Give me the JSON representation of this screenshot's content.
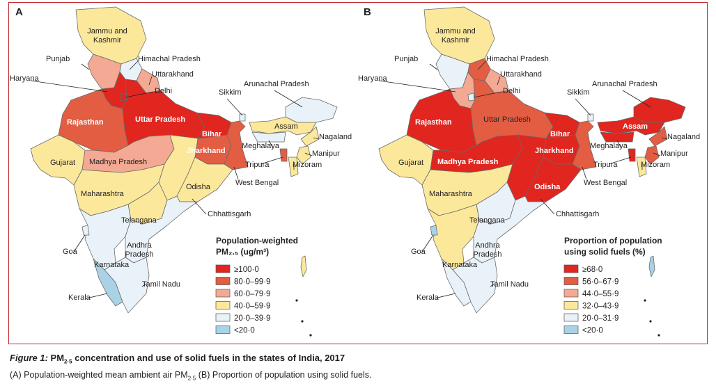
{
  "panels": [
    {
      "letter": "A",
      "legend": {
        "title_line1": "Population-weighted",
        "title_line2": "PM₂.₅ (ug/m³)",
        "items": [
          {
            "label": "≥100·0",
            "color": "#e0261f"
          },
          {
            "label": "80·0–99·9",
            "color": "#e35d43"
          },
          {
            "label": "60·0–79·9",
            "color": "#f3a993"
          },
          {
            "label": "40·0–59·9",
            "color": "#fbe89b"
          },
          {
            "label": "20·0–39·9",
            "color": "#e9f2f8"
          },
          {
            "label": "<20·0",
            "color": "#a9d2e6"
          }
        ]
      },
      "colors": {
        "jk": "#fbe89b",
        "hp": "#e9f2f8",
        "punjab": "#f3a993",
        "haryana": "#e0261f",
        "delhi": "#e0261f",
        "uttarakhand": "#f3a993",
        "rajasthan": "#e35d43",
        "up": "#e0261f",
        "bihar": "#e0261f",
        "jharkhand": "#e35d43",
        "wb": "#e35d43",
        "sikkim": "#e9f2f8",
        "arunachal": "#e9f2f8",
        "assam": "#fbe89b",
        "meghalaya": "#e9f2f8",
        "nagaland": "#fbe89b",
        "manipur": "#fbe89b",
        "mizoram": "#fbe89b",
        "tripura": "#e35d43",
        "gujarat": "#fbe89b",
        "mp": "#f3a993",
        "chhattisgarh": "#fbe89b",
        "odisha": "#fbe89b",
        "maharashtra": "#fbe89b",
        "telangana": "#fbe89b",
        "ap": "#e9f2f8",
        "karnataka": "#e9f2f8",
        "goa": "#e9f2f8",
        "kerala": "#a9d2e6",
        "tn": "#e9f2f8",
        "andaman": "#fbe89b"
      }
    },
    {
      "letter": "B",
      "legend": {
        "title_line1": "Proportion of population",
        "title_line2": "using solid fuels (%)",
        "items": [
          {
            "label": "≥68·0",
            "color": "#e0261f"
          },
          {
            "label": "56·0–67·9",
            "color": "#e35d43"
          },
          {
            "label": "44·0–55·9",
            "color": "#f3a993"
          },
          {
            "label": "32·0–43·9",
            "color": "#fbe89b"
          },
          {
            "label": "20·0–31·9",
            "color": "#e9f2f8"
          },
          {
            "label": "<20·0",
            "color": "#a9d2e6"
          }
        ]
      },
      "colors": {
        "jk": "#fbe89b",
        "hp": "#e35d43",
        "punjab": "#e9f2f8",
        "haryana": "#f3a993",
        "delhi": "#e9f2f8",
        "uttarakhand": "#f3a993",
        "rajasthan": "#e0261f",
        "up": "#e35d43",
        "bihar": "#e0261f",
        "jharkhand": "#e0261f",
        "wb": "#e35d43",
        "sikkim": "#e9f2f8",
        "arunachal": "#e0261f",
        "assam": "#e0261f",
        "meghalaya": "#e0261f",
        "nagaland": "#e35d43",
        "manipur": "#e35d43",
        "mizoram": "#fbe89b",
        "tripura": "#e0261f",
        "gujarat": "#fbe89b",
        "mp": "#e0261f",
        "chhattisgarh": "#e0261f",
        "odisha": "#e0261f",
        "maharashtra": "#fbe89b",
        "telangana": "#e9f2f8",
        "ap": "#e9f2f8",
        "karnataka": "#fbe89b",
        "goa": "#a9d2e6",
        "kerala": "#e9f2f8",
        "tn": "#e9f2f8",
        "andaman": "#a9d2e6"
      }
    }
  ],
  "labels": {
    "jk1": "Jammu and",
    "jk2": "Kashmir",
    "hp": "Himachal Pradesh",
    "punjab": "Punjab",
    "haryana": "Haryana",
    "uttarakhand": "Uttarakhand",
    "delhi": "Delhi",
    "sikkim": "Sikkim",
    "arunachal": "Arunachal Pradesh",
    "rajasthan": "Rajasthan",
    "up": "Uttar Pradesh",
    "bihar": "Bihar",
    "assam": "Assam",
    "nagaland": "Nagaland",
    "jharkhand": "Jharkhand",
    "meghalaya": "Meghalaya",
    "manipur": "Manipur",
    "gujarat": "Gujarat",
    "mp": "Madhya Pradesh",
    "tripura": "Tripura",
    "mizoram": "Mizoram",
    "wb": "West Bengal",
    "odisha": "Odisha",
    "maharashtra": "Maharashtra",
    "chhattisgarh": "Chhattisgarh",
    "telangana": "Telangana",
    "goa": "Goa",
    "ap1": "Andhra",
    "ap2": "Pradesh",
    "karnataka": "Karnataka",
    "tn": "Tamil Nadu",
    "kerala": "Kerala"
  },
  "caption": {
    "fig_label": "Figure 1:",
    "title_pre": " PM",
    "title_sub": "2·5",
    "title_post": " concentration and use of solid fuels in the states of India, 2017",
    "body_pre": "(A) Population-weighted mean ambient air PM",
    "body_sub": "2·5",
    "body_post": " (B) Proportion of population using solid fuels."
  }
}
